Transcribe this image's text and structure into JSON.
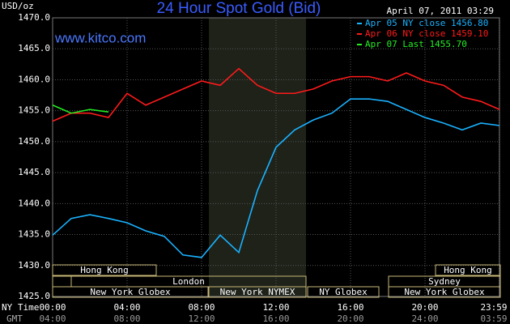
{
  "chart_data": {
    "type": "line",
    "title": "24 Hour Spot Gold (Bid)",
    "y_label": "USD/oz",
    "timestamp": "April 07, 2011 03:29",
    "watermark": "www.kitco.com",
    "x_row_label": "NY Time",
    "x2_row_label": "GMT",
    "x": [
      0,
      1,
      2,
      3,
      4,
      5,
      6,
      7,
      8,
      9,
      10,
      11,
      12,
      13,
      14,
      15,
      16,
      17,
      18,
      19,
      20,
      21,
      22,
      23,
      24
    ],
    "xlim": [
      0,
      24
    ],
    "xticks": [
      {
        "value": 0,
        "label": "00:00"
      },
      {
        "value": 4,
        "label": "04:00"
      },
      {
        "value": 8,
        "label": "08:00"
      },
      {
        "value": 12,
        "label": "12:00"
      },
      {
        "value": 16,
        "label": "16:00"
      },
      {
        "value": 20,
        "label": "20:00"
      },
      {
        "value": 23.983,
        "label": "23:59"
      }
    ],
    "x2ticks": [
      "04:00",
      "08:00",
      "12:00",
      "16:00",
      "20:00",
      "24:00",
      "03:59"
    ],
    "ylim": [
      1425,
      1470
    ],
    "yticks": [
      {
        "value": 1425,
        "label": "1425.0"
      },
      {
        "value": 1430,
        "label": "1430.0"
      },
      {
        "value": 1435,
        "label": "1435.0"
      },
      {
        "value": 1440,
        "label": "1440.0"
      },
      {
        "value": 1445,
        "label": "1445.0"
      },
      {
        "value": 1450,
        "label": "1450.0"
      },
      {
        "value": 1455,
        "label": "1455.0"
      },
      {
        "value": 1460,
        "label": "1460.0"
      },
      {
        "value": 1465,
        "label": "1465.0"
      },
      {
        "value": 1470,
        "label": "1470.0"
      }
    ],
    "grid": true,
    "legend_position": "top-right",
    "series": [
      {
        "name": "Apr 05 NY close 1456.80",
        "color": "#1ab2ff",
        "values": [
          1434.9,
          1437.6,
          1438.2,
          1437.6,
          1436.9,
          1435.6,
          1434.7,
          1431.7,
          1431.3,
          1434.9,
          1432.1,
          1442.1,
          1449.1,
          1451.9,
          1453.5,
          1454.6,
          1456.9,
          1456.9,
          1456.5,
          1455.2,
          1453.9,
          1453.0,
          1451.9,
          1453.0,
          1452.6
        ]
      },
      {
        "name": "Apr 06 NY close 1459.10",
        "color": "#ff1a1a",
        "values": [
          1453.3,
          1454.6,
          1454.6,
          1453.9,
          1457.8,
          1455.9,
          1457.2,
          1458.5,
          1459.8,
          1459.1,
          1461.8,
          1459.1,
          1457.8,
          1457.8,
          1458.5,
          1459.8,
          1460.5,
          1460.5,
          1459.8,
          1461.1,
          1459.8,
          1459.1,
          1457.2,
          1456.5,
          1455.2
        ]
      },
      {
        "name": "Apr 07 Last 1455.70",
        "color": "#22ee22",
        "values": [
          1455.9,
          1454.6,
          1455.2,
          1454.8,
          null,
          null,
          null,
          null,
          null,
          null,
          null,
          null,
          null,
          null,
          null,
          null,
          null,
          null,
          null,
          null,
          null,
          null,
          null,
          null,
          null
        ]
      }
    ],
    "sessions": [
      "Hong Kong",
      "Hong Kong",
      "London",
      "Sydney",
      "New York Globex",
      "New York NYMEX",
      "NY Globex",
      "New York Globex"
    ]
  }
}
